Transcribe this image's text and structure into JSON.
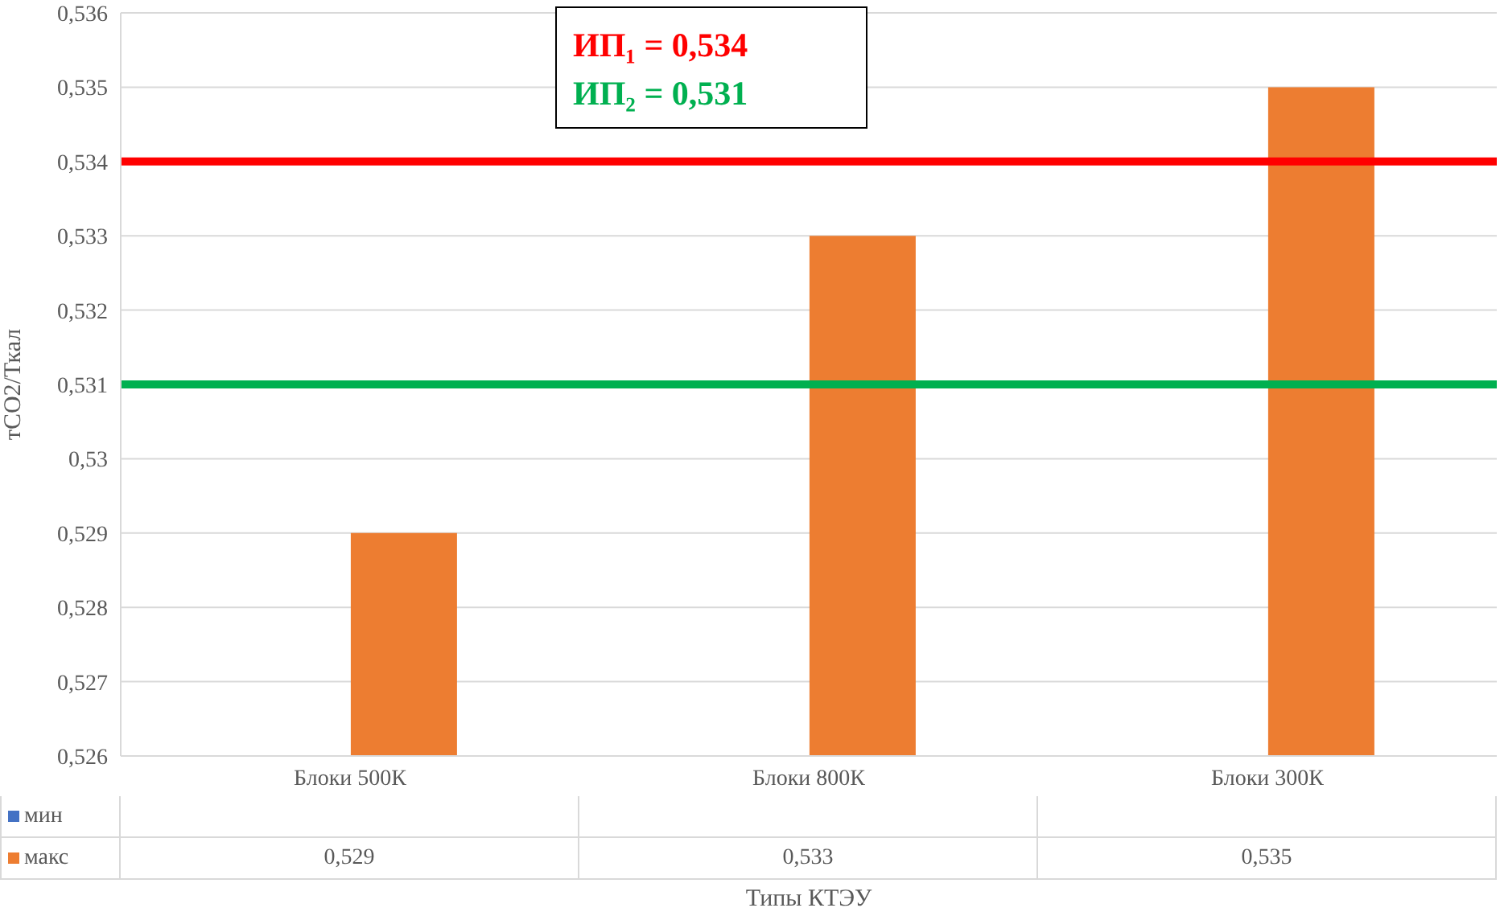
{
  "chart_data": {
    "type": "bar",
    "xlabel": "Типы КТЭУ",
    "ylabel": "тCO2/Ткал",
    "categories": [
      "Блоки 500К",
      "Блоки 800К",
      "Блоки 300К"
    ],
    "series": [
      {
        "name": "мин",
        "color": "#4472c4",
        "values": [
          null,
          null,
          null
        ],
        "value_labels": [
          null,
          null,
          null
        ]
      },
      {
        "name": "макс",
        "color": "#ed7d31",
        "values": [
          0.529,
          0.533,
          0.535
        ],
        "value_labels": [
          "0,529",
          "0,533",
          "0,535"
        ]
      }
    ],
    "ylim": [
      0.526,
      0.536
    ],
    "yticks": [
      {
        "value": 0.526,
        "label": "0,526"
      },
      {
        "value": 0.527,
        "label": "0,527"
      },
      {
        "value": 0.528,
        "label": "0,528"
      },
      {
        "value": 0.529,
        "label": "0,529"
      },
      {
        "value": 0.53,
        "label": "0,53"
      },
      {
        "value": 0.531,
        "label": "0,531"
      },
      {
        "value": 0.532,
        "label": "0,532"
      },
      {
        "value": 0.533,
        "label": "0,533"
      },
      {
        "value": 0.534,
        "label": "0,534"
      },
      {
        "value": 0.535,
        "label": "0,535"
      },
      {
        "value": 0.536,
        "label": "0,536"
      }
    ],
    "grid": "y",
    "ref_lines": [
      {
        "axis": "y",
        "value": 0.534,
        "label": "ИП₁ = 0,534",
        "color": "#ff0000"
      },
      {
        "axis": "y",
        "value": 0.531,
        "label": "ИП₂ = 0,531",
        "color": "#00b050"
      }
    ]
  }
}
